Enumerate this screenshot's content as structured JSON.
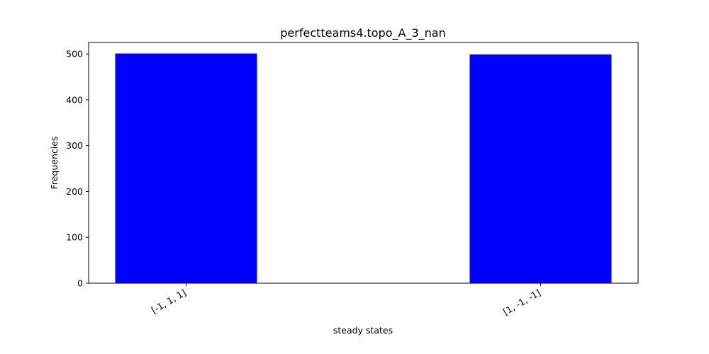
{
  "chart_data": {
    "type": "bar",
    "title": "perfectteams4.topo_A_3_nan",
    "xlabel": "steady states",
    "ylabel": "Frequencies",
    "categories": [
      "[-1, 1, 1]",
      "[1, -1, -1]"
    ],
    "values": [
      501,
      499
    ],
    "ylim": [
      0,
      525
    ],
    "yticks": [
      0,
      100,
      200,
      300,
      400,
      500
    ],
    "bar_color": "#0000ff",
    "grid": false,
    "legend": "none"
  }
}
